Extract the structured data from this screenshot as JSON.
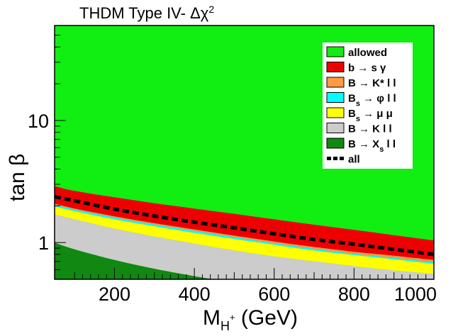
{
  "chart_data": {
    "type": "area",
    "title": "THDM Type IV- Δχ²",
    "xlabel": "M_{H+} (GeV)",
    "ylabel": "tan β",
    "xlim": [
      50,
      1000
    ],
    "ylim": [
      0.5,
      60
    ],
    "yscale": "log",
    "grid": false,
    "legend_position": "top-right",
    "x_ticks": [
      200,
      400,
      600,
      800,
      1000
    ],
    "y_ticks": [
      1,
      10
    ],
    "x": [
      50,
      100,
      200,
      300,
      400,
      500,
      600,
      700,
      800,
      900,
      1000
    ],
    "series": [
      {
        "name": "allowed",
        "kind": "fill",
        "color": "#11ee11"
      },
      {
        "name": "b → s γ",
        "kind": "band",
        "color": "#ee0000",
        "upper": [
          2.9,
          2.65,
          2.35,
          2.1,
          1.9,
          1.72,
          1.55,
          1.4,
          1.27,
          1.15,
          1.04
        ],
        "lower": [
          1.95,
          1.78,
          1.52,
          1.33,
          1.18,
          1.05,
          0.94,
          0.85,
          0.78,
          0.72,
          0.67
        ]
      },
      {
        "name": "B → K* l l",
        "kind": "band",
        "color": "#ff9944",
        "upper": [
          2.08,
          1.9,
          1.64,
          1.44,
          1.28,
          1.14,
          1.02,
          0.92,
          0.84,
          0.78,
          0.72
        ],
        "lower": [
          2.05,
          1.87,
          1.61,
          1.41,
          1.25,
          1.11,
          0.99,
          0.89,
          0.81,
          0.75,
          0.69
        ]
      },
      {
        "name": "B_s → φ l l",
        "kind": "band",
        "color": "#00ffff",
        "upper": [
          2.05,
          1.87,
          1.61,
          1.41,
          1.25,
          1.11,
          0.99,
          0.89,
          0.81,
          0.75,
          0.69
        ],
        "lower": [
          1.98,
          1.81,
          1.55,
          1.36,
          1.2,
          1.07,
          0.96,
          0.86,
          0.79,
          0.73,
          0.67
        ]
      },
      {
        "name": "B_s → μ μ",
        "kind": "band",
        "color": "#ffff00",
        "upper": [
          1.98,
          1.81,
          1.55,
          1.36,
          1.2,
          1.07,
          0.96,
          0.86,
          0.79,
          0.73,
          0.67
        ],
        "lower": [
          1.7,
          1.55,
          1.3,
          1.12,
          0.98,
          0.86,
          0.77,
          0.7,
          0.64,
          0.59,
          0.555
        ]
      },
      {
        "name": "B → K l l",
        "kind": "band",
        "color": "#cccccc",
        "upper": [
          1.7,
          1.55,
          1.3,
          1.12,
          0.98,
          0.86,
          0.77,
          0.7,
          0.64,
          0.59,
          0.555
        ],
        "lower": [
          1.0,
          0.88,
          0.72,
          0.61,
          0.53,
          0.47,
          0.42,
          0.38,
          0.35,
          0.33,
          0.31
        ]
      },
      {
        "name": "B → X_s l l",
        "kind": "band",
        "color": "#118811",
        "upper": [
          1.0,
          0.88,
          0.72,
          0.61,
          0.53,
          0.47,
          0.42,
          0.38,
          0.35,
          0.33,
          0.31
        ],
        "lower": [
          0.3,
          0.3,
          0.3,
          0.3,
          0.3,
          0.3,
          0.3,
          0.3,
          0.3,
          0.3,
          0.3
        ]
      },
      {
        "name": "all",
        "kind": "line",
        "color": "#000000",
        "dashed": true,
        "values": [
          2.38,
          2.2,
          1.88,
          1.65,
          1.47,
          1.32,
          1.18,
          1.06,
          0.97,
          0.88,
          0.8
        ]
      }
    ]
  }
}
